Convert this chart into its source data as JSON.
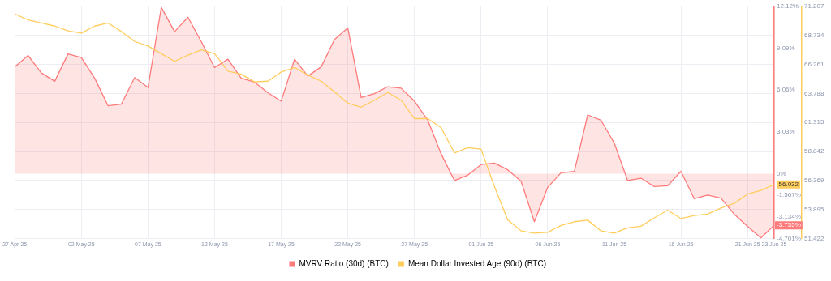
{
  "chart_data": {
    "type": "line",
    "x": [
      "--04-27",
      "--04-28",
      "--04-29",
      "--04-30",
      "--05-01",
      "--05-02",
      "--05-03",
      "--05-04",
      "--05-05",
      "--05-06",
      "--05-07",
      "--05-08",
      "--05-09",
      "--05-10",
      "--05-11",
      "--05-12",
      "--05-13",
      "--05-14",
      "--05-15",
      "--05-16",
      "--05-17",
      "--05-18",
      "--05-19",
      "--05-20",
      "--05-21",
      "--05-22",
      "--05-23",
      "--05-24",
      "--05-25",
      "--05-26",
      "--05-27",
      "--05-28",
      "--05-29",
      "--05-30",
      "--05-31",
      "--06-01",
      "--06-02",
      "--06-03",
      "--06-04",
      "--06-05",
      "--06-06",
      "--06-07",
      "--06-08",
      "--06-09",
      "--06-10",
      "--06-11",
      "--06-12",
      "--06-13",
      "--06-14",
      "--06-15",
      "--06-16",
      "--06-17",
      "--06-18",
      "--06-19",
      "--06-20",
      "--06-21",
      "--06-22",
      "--06-23"
    ],
    "series": [
      {
        "name": "MVRV Ratio (30d) (BTC)",
        "type": "area",
        "color": "#ff7a7a",
        "values": [
          7.73,
          8.56,
          7.29,
          6.69,
          8.67,
          8.4,
          6.91,
          4.92,
          5.03,
          6.96,
          6.24,
          12.04,
          10.28,
          11.33,
          9.56,
          7.68,
          8.29,
          6.91,
          6.63,
          5.86,
          5.25,
          8.29,
          7.07,
          7.73,
          9.72,
          10.55,
          5.52,
          5.8,
          6.3,
          6.19,
          5.25,
          3.87,
          1.44,
          -0.5,
          -0.11,
          0.66,
          0.77,
          0.28,
          -0.55,
          -3.48,
          -0.99,
          0.06,
          0.17,
          4.25,
          3.87,
          2.21,
          -0.5,
          -0.33,
          -0.94,
          -0.88,
          0.17,
          -1.82,
          -1.55,
          -1.77,
          -2.93,
          -3.81,
          -4.65,
          -3.735
        ],
        "value_labels": [
          null,
          null,
          null,
          null,
          null,
          null,
          null,
          null,
          null,
          null,
          null,
          null,
          null,
          null,
          null,
          null,
          null,
          null,
          null,
          null,
          null,
          null,
          null,
          null,
          null,
          null,
          null,
          null,
          null,
          null,
          null,
          null,
          null,
          null,
          null,
          null,
          null,
          null,
          null,
          null,
          null,
          null,
          null,
          null,
          null,
          null,
          null,
          null,
          null,
          null,
          null,
          null,
          null,
          null,
          null,
          null,
          null,
          "-3.735%"
        ]
      },
      {
        "name": "Mean Dollar Invested Age (90d) (BTC)",
        "type": "line",
        "axis": "y2",
        "color": "#ffcd5c",
        "values": [
          70.56,
          70.04,
          69.78,
          69.52,
          69.12,
          68.93,
          69.52,
          69.78,
          69.06,
          68.21,
          67.82,
          67.17,
          66.52,
          67.04,
          67.5,
          67.17,
          65.68,
          65.42,
          64.77,
          64.83,
          65.61,
          66.0,
          65.35,
          64.83,
          63.92,
          62.95,
          62.62,
          63.21,
          63.86,
          63.21,
          61.64,
          61.64,
          60.86,
          58.72,
          59.17,
          59.04,
          55.86,
          53.01,
          52.08,
          51.89,
          51.95,
          52.54,
          52.86,
          52.99,
          52.08,
          51.89,
          52.34,
          52.47,
          53.19,
          53.84,
          53.12,
          53.38,
          53.51,
          54.03,
          54.42,
          55.21,
          55.53,
          56.032
        ],
        "value_labels": [
          null,
          null,
          null,
          null,
          null,
          null,
          null,
          null,
          null,
          null,
          null,
          null,
          null,
          null,
          null,
          null,
          null,
          null,
          null,
          null,
          null,
          null,
          null,
          null,
          null,
          null,
          null,
          null,
          null,
          null,
          null,
          null,
          null,
          null,
          null,
          null,
          null,
          null,
          null,
          null,
          null,
          null,
          null,
          null,
          null,
          null,
          null,
          null,
          null,
          null,
          null,
          null,
          null,
          null,
          null,
          null,
          null,
          "56.032"
        ]
      }
    ],
    "xlim": [
      "--04-27",
      "--06-23"
    ],
    "xticks": [
      {
        "value": "--04-27",
        "label": "27 Apr 25"
      },
      {
        "value": "--05-02",
        "label": "02 May 25"
      },
      {
        "value": "--05-07",
        "label": "07 May 25"
      },
      {
        "value": "--05-12",
        "label": "12 May 25"
      },
      {
        "value": "--05-17",
        "label": "17 May 25"
      },
      {
        "value": "--05-22",
        "label": "22 May 25"
      },
      {
        "value": "--05-27",
        "label": "27 May 25"
      },
      {
        "value": "--06-01",
        "label": "01 Jun 25"
      },
      {
        "value": "--06-06",
        "label": "06 Jun 25"
      },
      {
        "value": "--06-11",
        "label": "11 Jun 25"
      },
      {
        "value": "--06-16",
        "label": "16 Jun 25"
      },
      {
        "value": "--06-21",
        "label": "21 Jun 25"
      },
      {
        "value": "--06-23",
        "label": "23 Jun 25"
      }
    ],
    "ylim": [
      -4.701,
      12.12
    ],
    "yticks": [
      {
        "value": -4.701,
        "label": "-4.701%"
      },
      {
        "value": -3.134,
        "label": "-3.134%"
      },
      {
        "value": -1.567,
        "label": "-1.567%"
      },
      {
        "value": 0,
        "label": "0%"
      },
      {
        "value": 3.03,
        "label": "3.03%"
      },
      {
        "value": 6.06,
        "label": "6.06%"
      },
      {
        "value": 9.09,
        "label": "9.09%"
      },
      {
        "value": 12.12,
        "label": "12.12%"
      }
    ],
    "y2lim": [
      51.422,
      71.207
    ],
    "y2ticks": [
      51.422,
      53.895,
      56.369,
      58.842,
      61.315,
      63.788,
      66.261,
      68.734,
      71.207
    ],
    "grid": true,
    "legend": "bottom",
    "marker": "none"
  }
}
